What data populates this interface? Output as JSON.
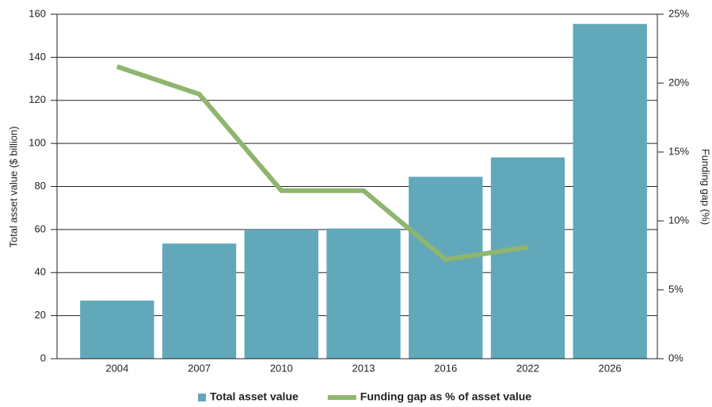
{
  "chart_data": {
    "type": "bar",
    "categories": [
      "2004",
      "2007",
      "2010",
      "2013",
      "2016",
      "2022",
      "2026"
    ],
    "series": [
      {
        "name": "Total asset value",
        "type": "bar",
        "color": "#62a8bb",
        "values": [
          27,
          53.5,
          60,
          60.5,
          84.5,
          93.5,
          155.5
        ]
      },
      {
        "name": "Funding gap as % of asset value",
        "type": "line",
        "axis": "y2",
        "color": "#8fb56e",
        "values": [
          21.2,
          19.2,
          12.2,
          12.2,
          7.2,
          8.1,
          null
        ]
      }
    ],
    "ylabel": "Total asset value ($ billion)",
    "y2label": "Funding gap (%)",
    "ylim": [
      0,
      160
    ],
    "yticks": [
      0,
      20,
      40,
      60,
      80,
      100,
      120,
      140,
      160
    ],
    "y2lim": [
      0,
      25
    ],
    "y2ticks": [
      {
        "value": 0,
        "label": "0%"
      },
      {
        "value": 5,
        "label": "5%"
      },
      {
        "value": 10,
        "label": "10%"
      },
      {
        "value": 15,
        "label": "15%"
      },
      {
        "value": 20,
        "label": "20%"
      },
      {
        "value": 25,
        "label": "25%"
      }
    ],
    "grid": true,
    "legend": "bottom"
  }
}
